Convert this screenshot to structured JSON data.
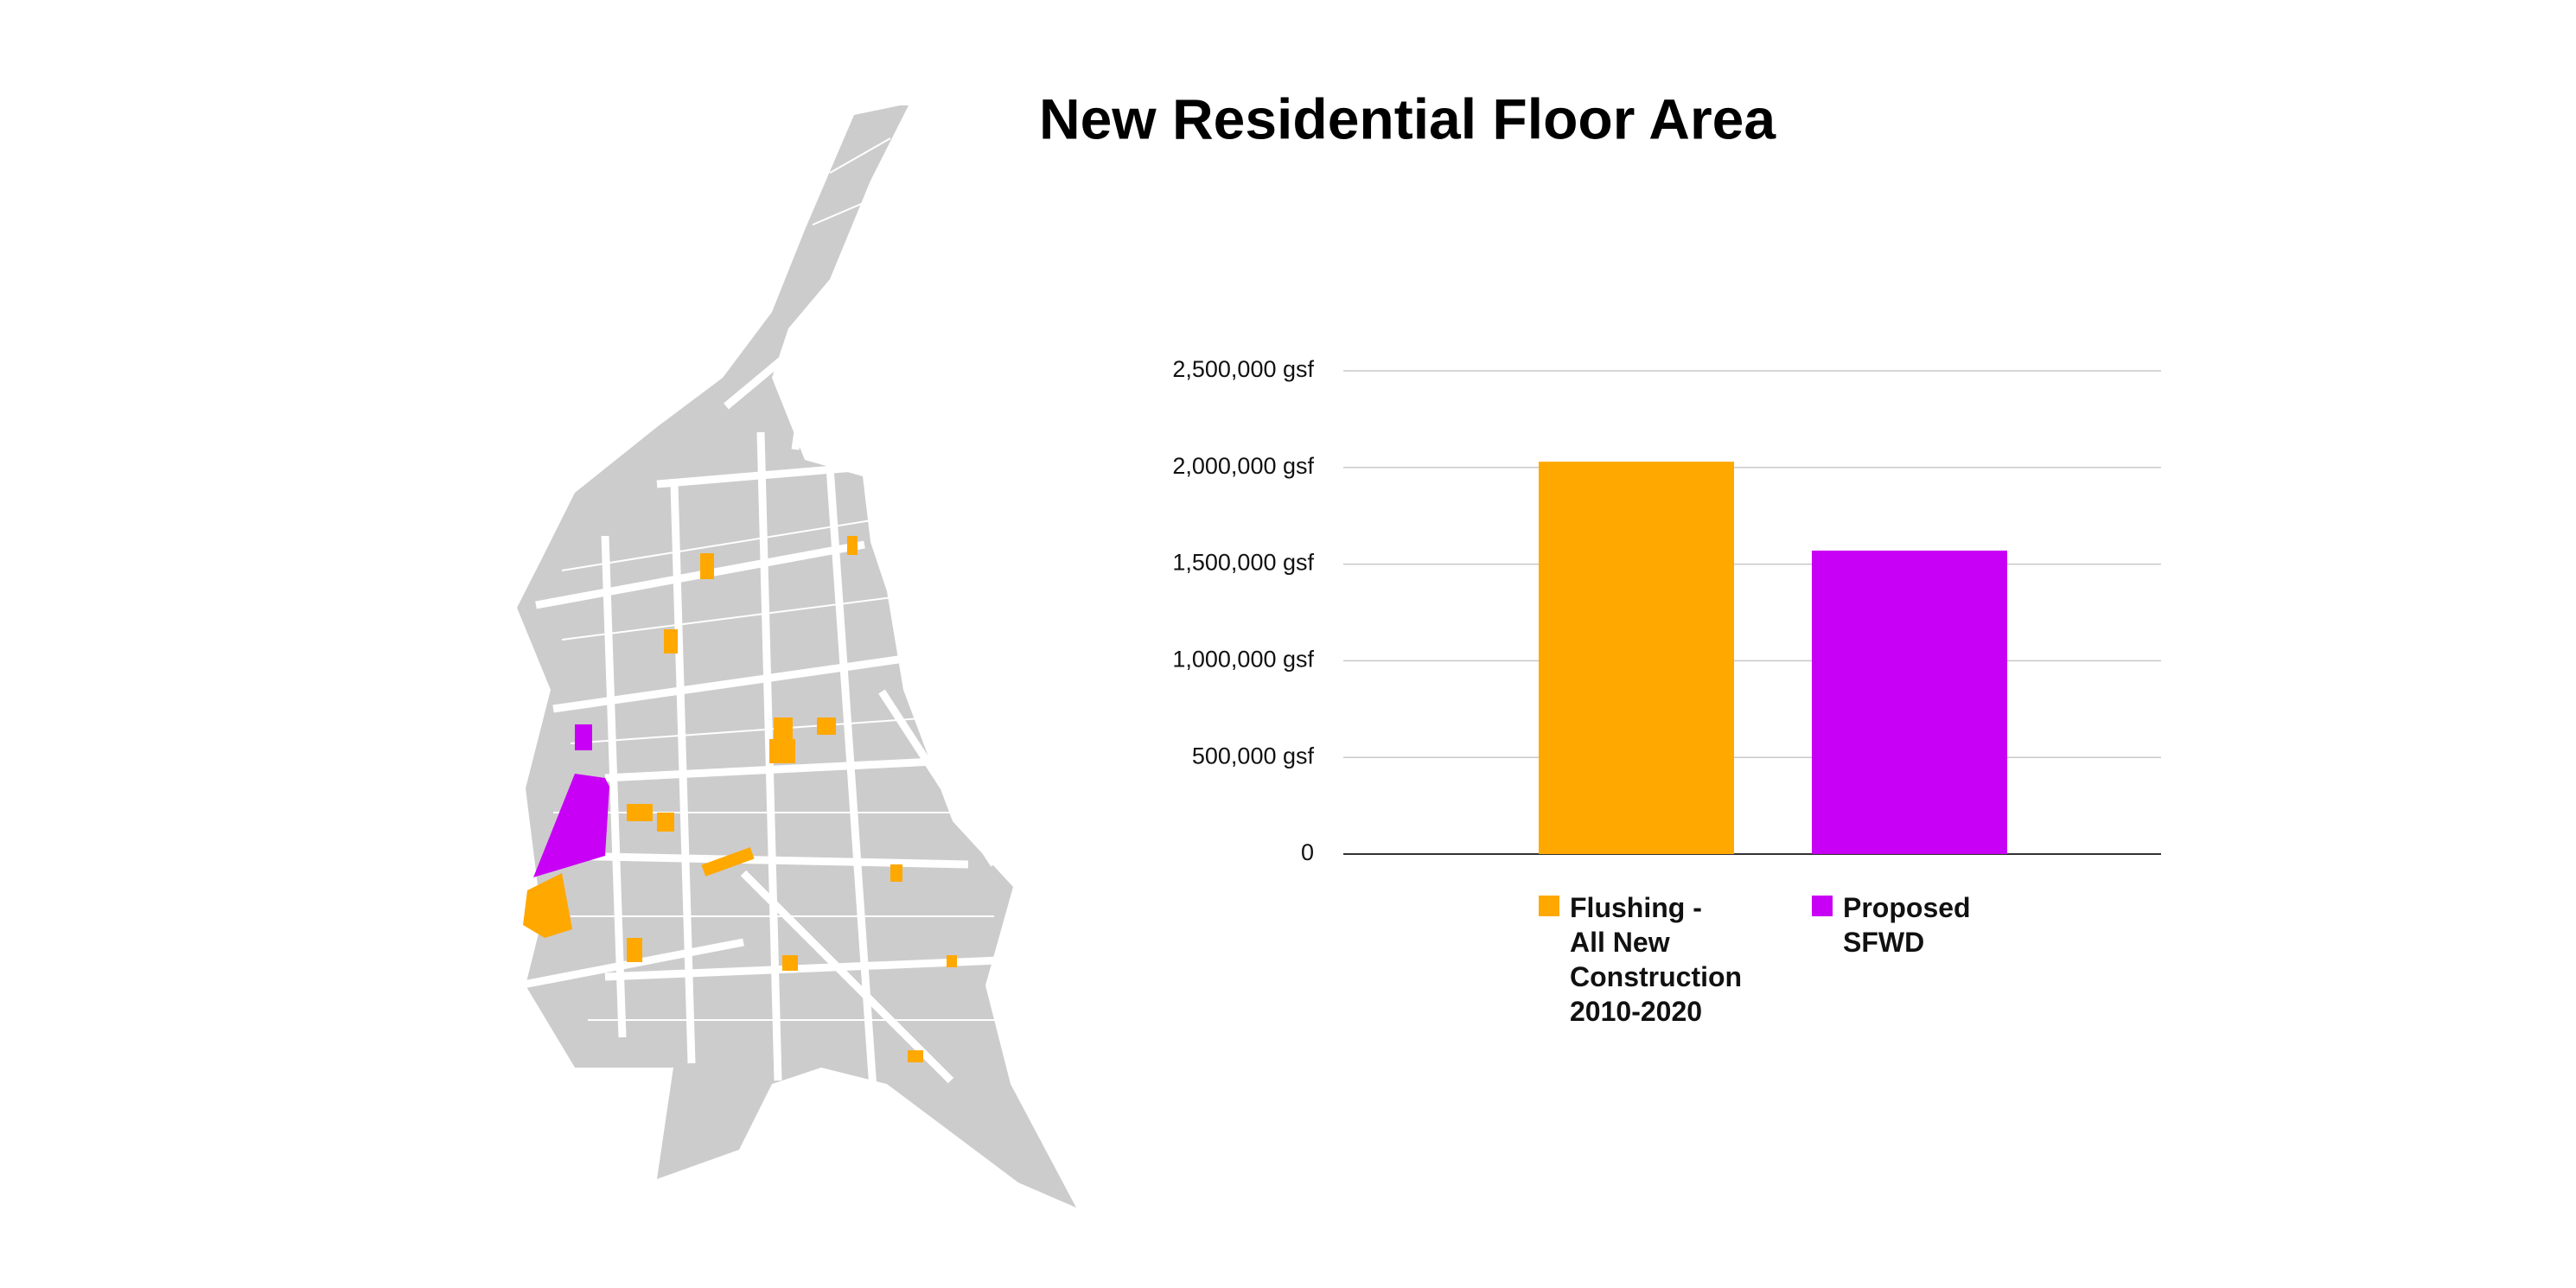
{
  "chart_data": {
    "type": "bar",
    "title": "New Residential Floor Area",
    "series": [
      {
        "name": "Flushing - All New Construction 2010-2020",
        "color": "#ffa800",
        "values": [
          2030000
        ]
      },
      {
        "name": "Proposed SFWD",
        "color": "#c800f5",
        "values": [
          1570000
        ]
      }
    ],
    "ylim": [
      0,
      2500000
    ],
    "yticks": [
      0,
      {
        "value": 500000,
        "label": "500,000 gsf"
      },
      {
        "value": 1000000,
        "label": "1,000,000 gsf"
      },
      {
        "value": 1500000,
        "label": "1,500,000 gsf"
      },
      {
        "value": 2000000,
        "label": "2,000,000 gsf"
      },
      {
        "value": 2500000,
        "label": "2,500,000 gsf"
      }
    ],
    "grid": true
  }
}
